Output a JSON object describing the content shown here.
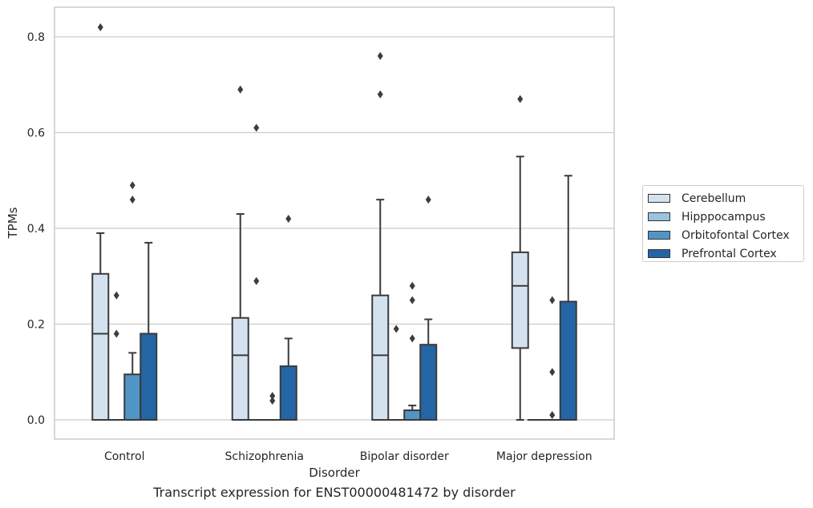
{
  "caption": "Transcript expression for ENST00000481472 by disorder",
  "chart_data": {
    "type": "box",
    "xlabel": "Disorder",
    "ylabel": "TPMs",
    "ylim": [
      -0.04,
      0.86
    ],
    "yticks": [
      "0.0",
      "0.2",
      "0.4",
      "0.6",
      "0.8"
    ],
    "grid": "horizontal",
    "legend_position": "right",
    "categories": [
      "Control",
      "Schizophrenia",
      "Bipolar disorder",
      "Major depression"
    ],
    "series": [
      {
        "name": "Cerebellum",
        "color": "#d4e2f0",
        "boxes": [
          {
            "min": 0.0,
            "q1": 0.0,
            "median": 0.18,
            "q3": 0.305,
            "max": 0.39,
            "outliers": [
              0.82
            ]
          },
          {
            "min": 0.0,
            "q1": 0.0,
            "median": 0.135,
            "q3": 0.213,
            "max": 0.43,
            "outliers": [
              0.69
            ]
          },
          {
            "min": 0.0,
            "q1": 0.0,
            "median": 0.135,
            "q3": 0.26,
            "max": 0.46,
            "outliers": [
              0.68,
              0.76
            ]
          },
          {
            "min": 0.0,
            "q1": 0.15,
            "median": 0.28,
            "q3": 0.35,
            "max": 0.55,
            "outliers": [
              0.67
            ]
          }
        ]
      },
      {
        "name": "Hipppocampus",
        "color": "#9ac3de",
        "boxes": [
          {
            "min": 0.0,
            "q1": 0.0,
            "median": 0.0,
            "q3": 0.0,
            "max": 0.0,
            "outliers": [
              0.18,
              0.26
            ]
          },
          {
            "min": 0.0,
            "q1": 0.0,
            "median": 0.0,
            "q3": 0.0,
            "max": 0.0,
            "outliers": [
              0.29,
              0.61
            ]
          },
          {
            "min": 0.0,
            "q1": 0.0,
            "median": 0.0,
            "q3": 0.0,
            "max": 0.0,
            "outliers": [
              0.19
            ]
          },
          {
            "min": 0.0,
            "q1": 0.0,
            "median": 0.0,
            "q3": 0.0,
            "max": 0.0,
            "outliers": []
          }
        ]
      },
      {
        "name": "Orbitofontal Cortex",
        "color": "#5195c7",
        "boxes": [
          {
            "min": 0.0,
            "q1": 0.0,
            "median": 0.0,
            "q3": 0.095,
            "max": 0.14,
            "outliers": [
              0.46,
              0.49
            ]
          },
          {
            "min": 0.0,
            "q1": 0.0,
            "median": 0.0,
            "q3": 0.0,
            "max": 0.0,
            "outliers": [
              0.04,
              0.05
            ]
          },
          {
            "min": 0.0,
            "q1": 0.0,
            "median": 0.0,
            "q3": 0.02,
            "max": 0.03,
            "outliers": [
              0.17,
              0.25,
              0.28
            ]
          },
          {
            "min": 0.0,
            "q1": 0.0,
            "median": 0.0,
            "q3": 0.0,
            "max": 0.0,
            "outliers": [
              0.01,
              0.1,
              0.25
            ]
          }
        ]
      },
      {
        "name": "Prefrontal Cortex",
        "color": "#2465a5",
        "boxes": [
          {
            "min": 0.0,
            "q1": 0.0,
            "median": 0.0,
            "q3": 0.18,
            "max": 0.37,
            "outliers": []
          },
          {
            "min": 0.0,
            "q1": 0.0,
            "median": 0.0,
            "q3": 0.112,
            "max": 0.17,
            "outliers": [
              0.42
            ]
          },
          {
            "min": 0.0,
            "q1": 0.0,
            "median": 0.0,
            "q3": 0.157,
            "max": 0.21,
            "outliers": [
              0.46
            ]
          },
          {
            "min": 0.0,
            "q1": 0.0,
            "median": 0.0,
            "q3": 0.247,
            "max": 0.51,
            "outliers": []
          }
        ]
      }
    ]
  }
}
